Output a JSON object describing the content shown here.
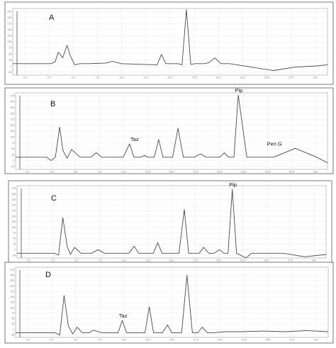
{
  "chart_data": [
    {
      "type": "line",
      "panel_label": "A",
      "x_ticks": [
        "0.0",
        "2.5",
        "5.0",
        "7.5",
        "10.0",
        "12.5",
        "15.0",
        "17.5",
        "20.0",
        "22.5",
        "25.0",
        "27.5",
        "min"
      ],
      "y_ticks": [
        "-50",
        "0",
        "25",
        "50",
        "75",
        "100",
        "125",
        "150",
        "175",
        "200",
        "225"
      ],
      "ylim": [
        -50,
        240
      ],
      "xlim": [
        0,
        29
      ],
      "series": [
        {
          "x": [
            0,
            3.5,
            3.9,
            4.2,
            4.6,
            5.0,
            5.3,
            5.7,
            6.2,
            7,
            8.5,
            9.2,
            10,
            12,
            13.3,
            13.7,
            14.1,
            14.6,
            15.2,
            15.6,
            16.0,
            16.4,
            16.8,
            17.3,
            17.7,
            18.1,
            18.6,
            19.2,
            20,
            22,
            24,
            26,
            28,
            29
          ],
          "y": [
            0,
            0,
            8,
            50,
            25,
            80,
            35,
            -5,
            0,
            0,
            2,
            10,
            0,
            -3,
            -5,
            40,
            0,
            0,
            0,
            -5,
            235,
            -3,
            0,
            0,
            0,
            5,
            25,
            0,
            0,
            -15,
            -30,
            -15,
            -10,
            -5
          ]
        }
      ],
      "annotations": []
    },
    {
      "type": "line",
      "panel_label": "B",
      "x_ticks": [
        "0.0",
        "2.5",
        "5.0",
        "7.5",
        "10.0",
        "12.5",
        "15.0",
        "17.5",
        "20.0",
        "22.5",
        "25.0",
        "27.5",
        "min"
      ],
      "y_ticks": [
        "-50",
        "0",
        "25",
        "50",
        "75",
        "100",
        "125",
        "150",
        "175",
        "200",
        "225",
        "250",
        "275"
      ],
      "ylim": [
        -55,
        290
      ],
      "xlim": [
        0,
        29
      ],
      "series": [
        {
          "x": [
            0,
            2.9,
            3.3,
            3.7,
            4.1,
            4.4,
            4.8,
            5.2,
            6,
            7,
            7.5,
            8,
            9,
            10,
            10.6,
            11,
            11.6,
            12,
            12.3,
            12.9,
            13.3,
            13.7,
            14.2,
            14.6,
            15.1,
            15.6,
            16,
            16.6,
            17.2,
            17.7,
            18.3,
            19,
            19.4,
            19.8,
            20.3,
            20.7,
            21.5,
            22.5,
            24,
            26,
            28,
            29
          ],
          "y": [
            0,
            0,
            -15,
            0,
            135,
            30,
            -5,
            35,
            0,
            0,
            20,
            0,
            0,
            0,
            60,
            0,
            0,
            8,
            0,
            0,
            80,
            0,
            0,
            0,
            130,
            0,
            0,
            0,
            15,
            0,
            0,
            0,
            20,
            0,
            0,
            280,
            0,
            0,
            0,
            40,
            0,
            -25
          ]
        }
      ],
      "annotations": [
        {
          "text": "Taz",
          "x": 11.0,
          "y": 60
        },
        {
          "text": "Pip",
          "x": 20.7,
          "y": 280
        },
        {
          "text": "Pen G",
          "x": 24.0,
          "y": 40
        }
      ]
    },
    {
      "type": "line",
      "panel_label": "C",
      "x_ticks": [
        "0.0",
        "2.5",
        "5.0",
        "7.5",
        "10.0",
        "12.5",
        "15.0",
        "17.5",
        "20.0",
        "22.5",
        "25.0",
        "27.5",
        "min"
      ],
      "y_ticks": [
        "-50",
        "0",
        "25",
        "50",
        "75",
        "100",
        "125",
        "150",
        "175",
        "200",
        "225",
        "250",
        "275"
      ],
      "ylim": [
        -20,
        285
      ],
      "xlim": [
        0,
        29
      ],
      "series": [
        {
          "x": [
            0,
            3.5,
            3.9,
            4.3,
            4.7,
            5.0,
            5.4,
            6,
            7,
            7.6,
            8.2,
            9,
            10.5,
            11,
            11.4,
            12,
            12.8,
            13.2,
            13.6,
            14.2,
            14.7,
            15.2,
            15.7,
            16.1,
            16.6,
            17.1,
            17.5,
            18,
            18.5,
            19,
            19.4,
            19.8,
            20.2,
            20.6,
            21.5,
            22,
            23,
            25,
            27,
            29
          ],
          "y": [
            0,
            0,
            -8,
            150,
            30,
            -5,
            25,
            0,
            0,
            15,
            0,
            0,
            0,
            30,
            0,
            0,
            0,
            45,
            0,
            0,
            0,
            0,
            185,
            0,
            0,
            0,
            25,
            0,
            0,
            15,
            0,
            0,
            270,
            0,
            -20,
            0,
            0,
            0,
            -15,
            -5
          ]
        }
      ],
      "annotations": [
        {
          "text": "Pip",
          "x": 20.2,
          "y": 270
        }
      ]
    },
    {
      "type": "line",
      "panel_label": "D",
      "x_ticks": [
        "0.0",
        "2.5",
        "5.0",
        "7.5",
        "10.0",
        "12.5",
        "15.0",
        "17.5",
        "20.0",
        "22.5",
        "25.0",
        "27.5",
        "min"
      ],
      "y_ticks": [
        "-50",
        "0",
        "25",
        "50",
        "75",
        "100",
        "125",
        "150",
        "175",
        "200",
        "225",
        "250",
        "275"
      ],
      "ylim": [
        -20,
        290
      ],
      "xlim": [
        0,
        29
      ],
      "series": [
        {
          "x": [
            0,
            3.7,
            4.1,
            4.5,
            4.9,
            5.3,
            5.7,
            6.2,
            6.8,
            7.2,
            8,
            9,
            9.5,
            9.9,
            10.3,
            10.8,
            11.3,
            12,
            12.4,
            12.8,
            13.2,
            13.6,
            14.1,
            14.5,
            14.9,
            15.4,
            15.9,
            16.4,
            16.9,
            17.3,
            17.8,
            18.3,
            19.5,
            21,
            23,
            25,
            27,
            29
          ],
          "y": [
            0,
            0,
            -10,
            165,
            30,
            -5,
            25,
            0,
            0,
            12,
            0,
            0,
            0,
            55,
            0,
            0,
            0,
            0,
            115,
            0,
            0,
            0,
            35,
            0,
            0,
            0,
            255,
            0,
            0,
            25,
            0,
            0,
            5,
            5,
            8,
            5,
            10,
            5
          ]
        }
      ],
      "annotations": [
        {
          "text": "Taz",
          "x": 9.9,
          "y": 55
        }
      ]
    }
  ]
}
